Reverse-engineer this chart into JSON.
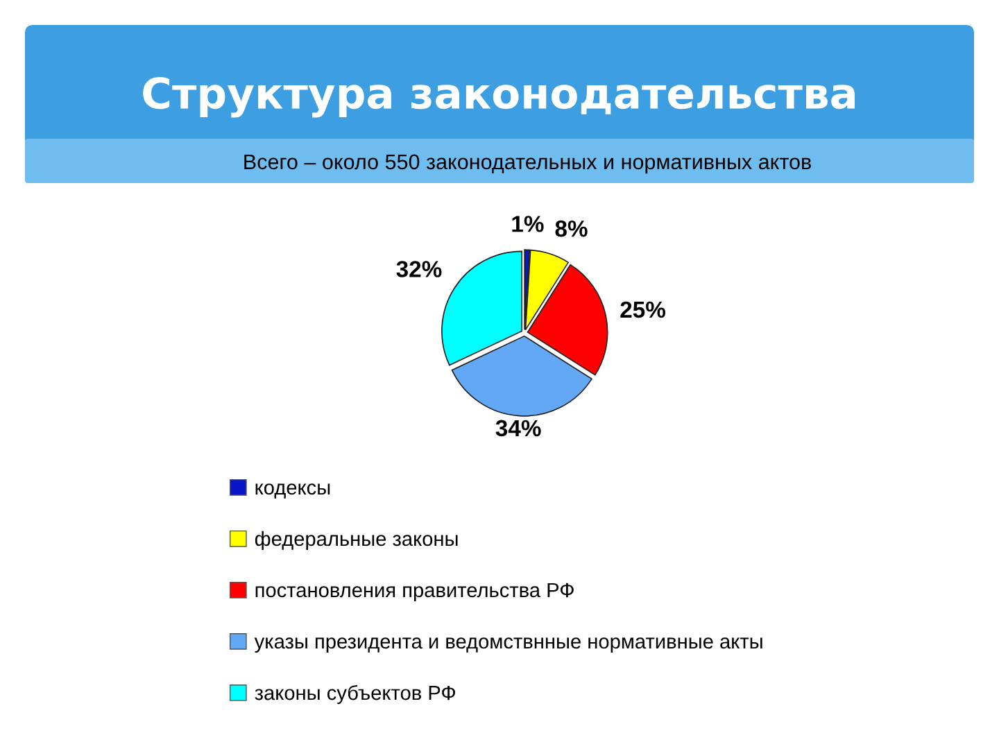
{
  "chart_data": {
    "type": "pie",
    "title": "Структура законодательства",
    "subtitle": "Всего – около 550 законодательных и нормативных актов",
    "categories": [
      "кодексы",
      "федеральные законы",
      "постановления правительства РФ",
      "указы президента и ведомствнные нормативные акты",
      "законы субъектов РФ"
    ],
    "values": [
      1,
      8,
      25,
      34,
      32
    ],
    "colors": [
      "#0a14c8",
      "#ffff00",
      "#ff0000",
      "#62a8f4",
      "#00ffff"
    ],
    "value_labels": [
      "1%",
      "8%",
      "25%",
      "34%",
      "32%"
    ],
    "legend": "bottom"
  }
}
